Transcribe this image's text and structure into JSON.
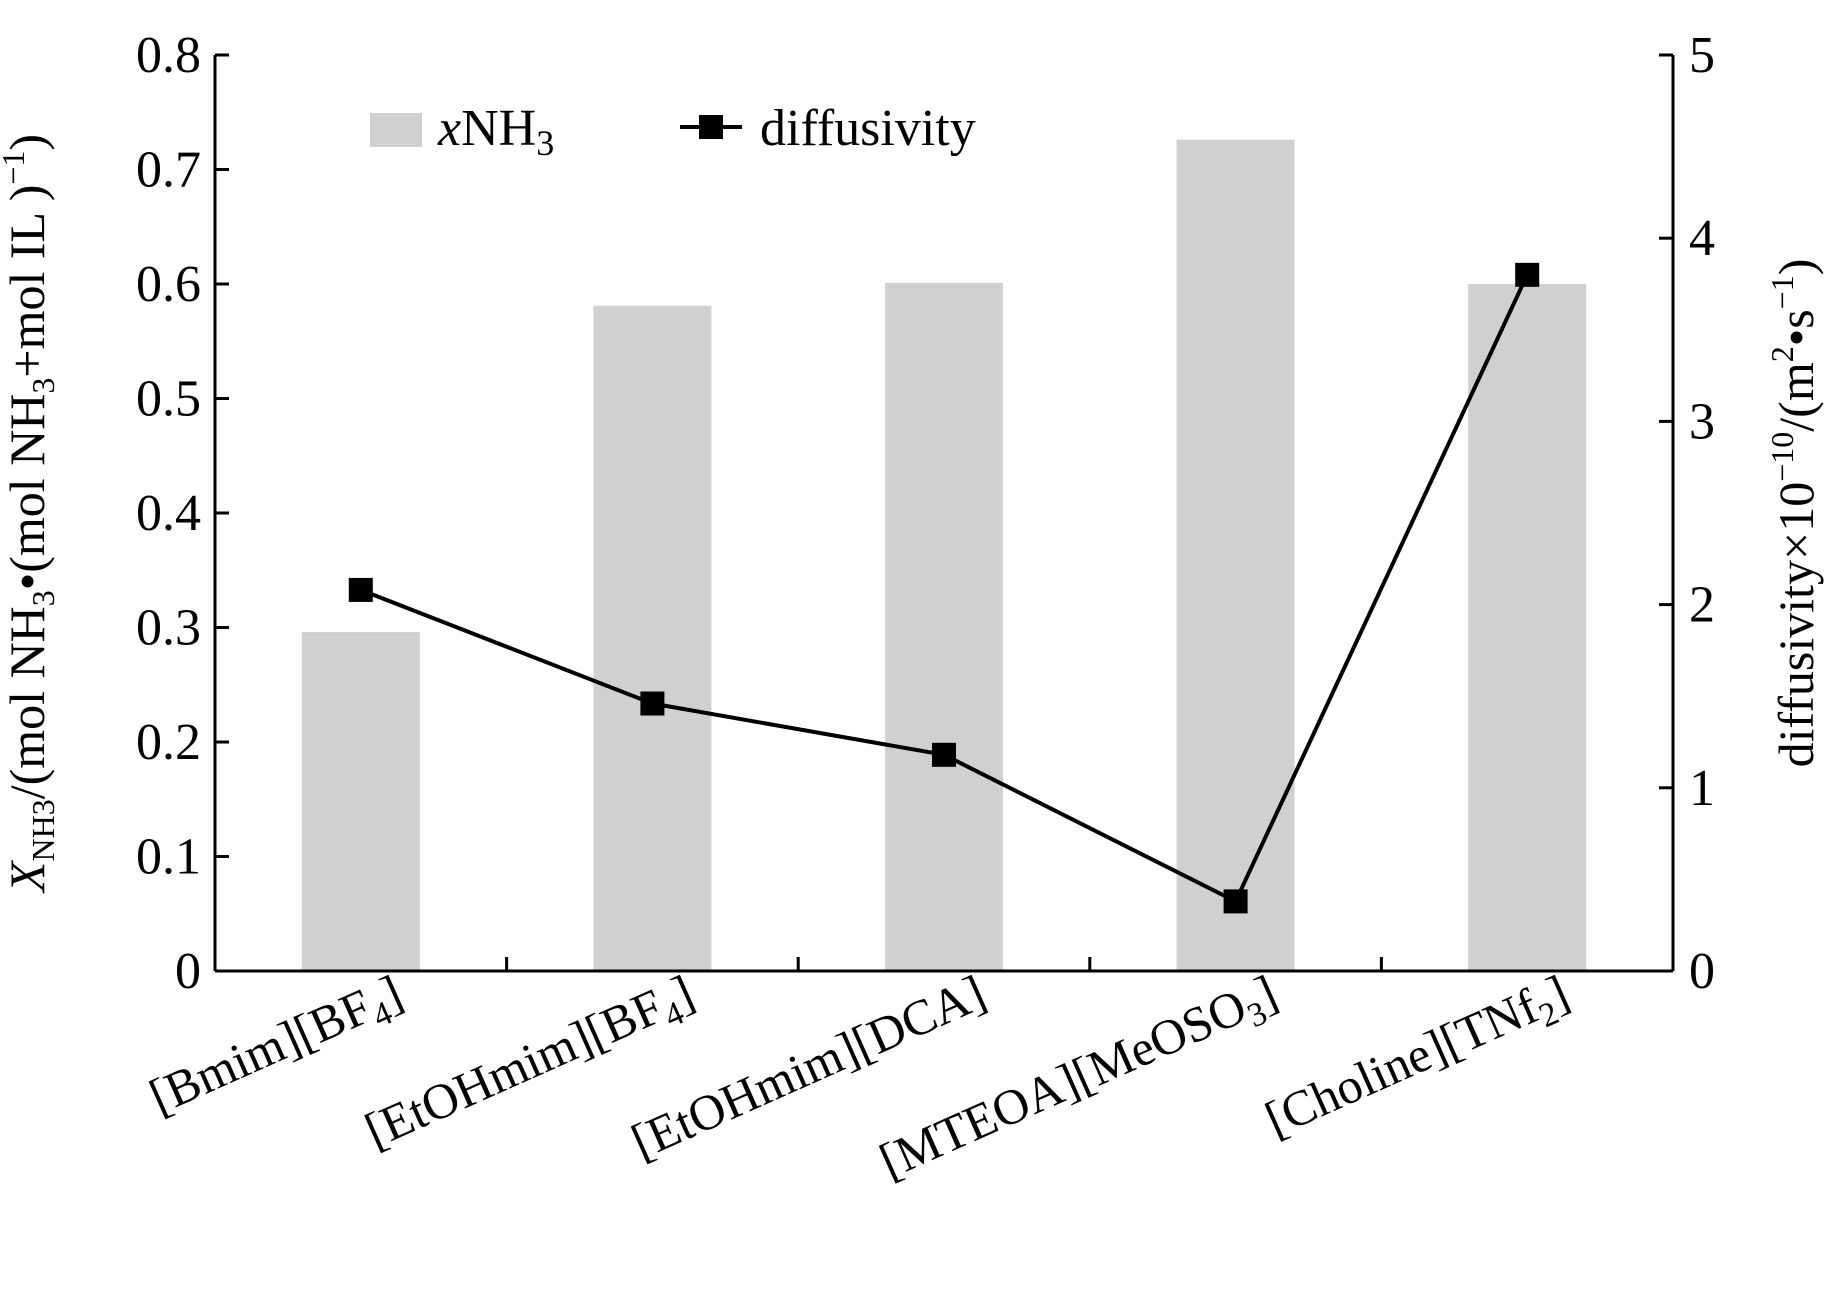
{
  "chart_data": {
    "type": "bar",
    "categories": [
      {
        "main": "[Bmim][BF",
        "sub": "4",
        "tail": "]"
      },
      {
        "main": "[EtOHmim][BF",
        "sub": "4",
        "tail": "]"
      },
      {
        "main": "[EtOHmim][DCA]",
        "sub": "",
        "tail": ""
      },
      {
        "main": "[MTEOA][MeOSO",
        "sub": "3",
        "tail": "]"
      },
      {
        "main": "[Choline][TNf",
        "sub": "2",
        "tail": "]"
      }
    ],
    "series": [
      {
        "name": "xNH3",
        "type": "bar",
        "axis": "left",
        "color": "#d0d0d0",
        "values": [
          0.296,
          0.581,
          0.601,
          0.726,
          0.6
        ]
      },
      {
        "name": "diffusivity",
        "type": "line",
        "axis": "right",
        "color": "#000000",
        "marker": "square",
        "values": [
          2.08,
          1.46,
          1.18,
          0.38,
          3.8
        ]
      }
    ],
    "legend": [
      {
        "italic": "x",
        "text": "NH",
        "sub": "3"
      },
      {
        "italic": "",
        "text": "diffusivity",
        "sub": ""
      }
    ],
    "legend_placement": "top-left",
    "y_left": {
      "range": [
        0,
        0.8
      ],
      "ticks": [
        "0",
        "0.1",
        "0.2",
        "0.3",
        "0.4",
        "0.5",
        "0.6",
        "0.7",
        "0.8"
      ],
      "label": {
        "sym": "X",
        "symsub": "NH3",
        "p1": "/(mol NH",
        "s1": "3",
        "p2": "•(mol NH",
        "s2": "3",
        "p3": "+mol IL )",
        "sup": "−1",
        "p4": ")"
      }
    },
    "y_right": {
      "range": [
        0,
        5
      ],
      "ticks": [
        "0",
        "1",
        "2",
        "3",
        "4",
        "5"
      ],
      "label": {
        "p1": "diffusivity×10",
        "sup1": "−10",
        "p2": "/(m",
        "sup2": "2",
        "p3": "•s",
        "sup3": "−1",
        "p4": ")"
      }
    },
    "grid": false
  }
}
